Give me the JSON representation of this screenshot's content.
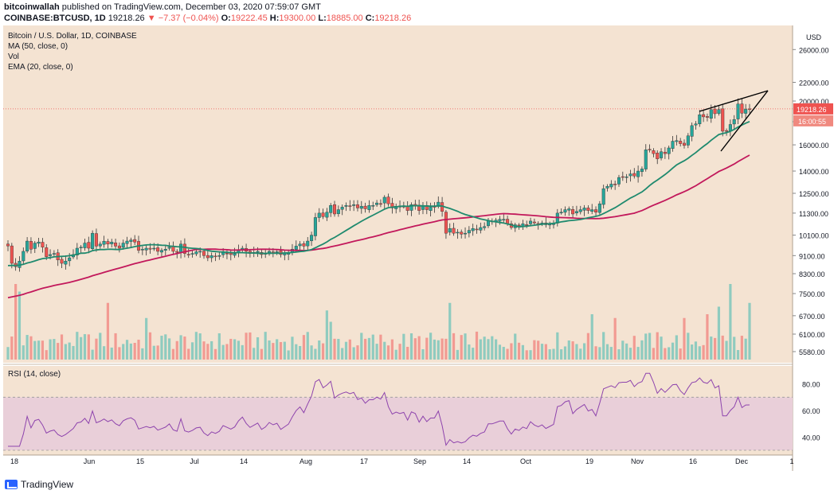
{
  "header": {
    "publisher": "bitcoinwallah",
    "published_text": "published on TradingView.com, December 03, 2020 07:59:07 GMT",
    "symbol": "COINBASE:BTCUSD, 1D",
    "last": "19218.26",
    "change": "−7.37 (−0.04%)",
    "open_label": "O:",
    "open": "19222.45",
    "high_label": "H:",
    "high": "19300.00",
    "low_label": "L:",
    "low": "18885.00",
    "close_label": "C:",
    "close": "19218.26"
  },
  "legend": {
    "title": "Bitcoin / U.S. Dollar, 1D, COINBASE",
    "ma": "MA (50, close, 0)",
    "vol": "Vol",
    "ema": "EMA (20, close, 0)",
    "rsi": "RSI (14, close)"
  },
  "price_axis": {
    "currency": "USD",
    "ticks": [
      "26000.00",
      "22000.00",
      "20000.00",
      "18000.00",
      "16000.00",
      "14000.00",
      "12500.00",
      "11300.00",
      "10100.00",
      "9100.00",
      "8300.00",
      "7500.00",
      "6700.00",
      "6100.00",
      "5580.00"
    ],
    "last_price_tag": "19218.26",
    "countdown_tag": "16:00:55"
  },
  "rsi_axis": {
    "ticks": [
      "80.00",
      "60.00",
      "40.00"
    ]
  },
  "time_axis": {
    "labels": [
      "18",
      "Jun",
      "15",
      "Jul",
      "14",
      "Aug",
      "17",
      "Sep",
      "14",
      "Oct",
      "19",
      "Nov",
      "16",
      "Dec",
      "1"
    ]
  },
  "footer": {
    "brand": "TradingView"
  },
  "colors": {
    "background": "#f4e3d2",
    "rsi_band": "#e9cfd9",
    "up": "#26a69a",
    "down": "#ef5350",
    "vol_up": "#8fcbbf",
    "vol_down": "#f29a92",
    "ma": "#c2185b",
    "ema": "#1f8a6e",
    "rsi": "#8e44ad",
    "trendline": "#000000"
  },
  "chart_data": [
    {
      "type": "candlestick",
      "title": "Bitcoin / U.S. Dollar, 1D, COINBASE",
      "y_scale": "log",
      "ylim": [
        5580,
        28000
      ],
      "x_start": "2020-05-09",
      "x_end": "2020-12-03",
      "close": [
        9560,
        8750,
        8600,
        8850,
        9300,
        9800,
        9400,
        9700,
        9750,
        9500,
        9050,
        9150,
        9200,
        8900,
        8750,
        8850,
        9000,
        9150,
        9450,
        9500,
        9700,
        9450,
        10200,
        9550,
        9650,
        9790,
        9650,
        9750,
        9550,
        9450,
        9700,
        9800,
        9850,
        9750,
        9350,
        9400,
        9450,
        9400,
        9450,
        9300,
        9350,
        9400,
        9500,
        9300,
        9250,
        9650,
        9200,
        9150,
        9200,
        9280,
        9300,
        9100,
        9000,
        9100,
        9050,
        9100,
        9250,
        9200,
        9150,
        9200,
        9350,
        9450,
        9300,
        9200,
        9250,
        9300,
        9150,
        9200,
        9300,
        9250,
        9280,
        9150,
        9200,
        9250,
        9400,
        9550,
        9650,
        9550,
        9800,
        10100,
        11050,
        11300,
        11100,
        11350,
        11750,
        11250,
        11500,
        11650,
        11750,
        11700,
        11800,
        11600,
        11700,
        11550,
        11750,
        11750,
        11900,
        11850,
        12250,
        11850,
        11600,
        11700,
        11650,
        11700,
        11450,
        11800,
        11750,
        11450,
        11700,
        11500,
        11650,
        11650,
        11950,
        11400,
        10200,
        10450,
        10200,
        10250,
        10150,
        10200,
        10350,
        10450,
        10400,
        10500,
        10550,
        10850,
        10850,
        10900,
        10950,
        10950,
        10700,
        10500,
        10650,
        10600,
        10700,
        10650,
        10850,
        10750,
        10700,
        10750,
        10650,
        10700,
        10750,
        11300,
        11350,
        11500,
        11550,
        11250,
        11400,
        11500,
        11600,
        11450,
        11500,
        11350,
        11850,
        12800,
        12950,
        13100,
        13050,
        13550,
        13600,
        13600,
        13800,
        13650,
        14000,
        14150,
        15600,
        15600,
        15300,
        14900,
        15450,
        15300,
        15750,
        16300,
        16350,
        16100,
        15950,
        16750,
        17650,
        17800,
        18650,
        18450,
        18400,
        19150,
        18750,
        19150,
        17150,
        17150,
        17750,
        18200,
        19700,
        18800,
        19200,
        19218
      ],
      "ma50_start": 7300,
      "ma50_end": 15400,
      "ema20_start": 8600,
      "ema20_end": 18000
    },
    {
      "type": "bar",
      "title": "Vol"
    },
    {
      "type": "line",
      "title": "RSI (14, close)",
      "ylim": [
        30,
        90
      ],
      "bands": [
        30,
        70
      ],
      "last_value": 64
    }
  ]
}
